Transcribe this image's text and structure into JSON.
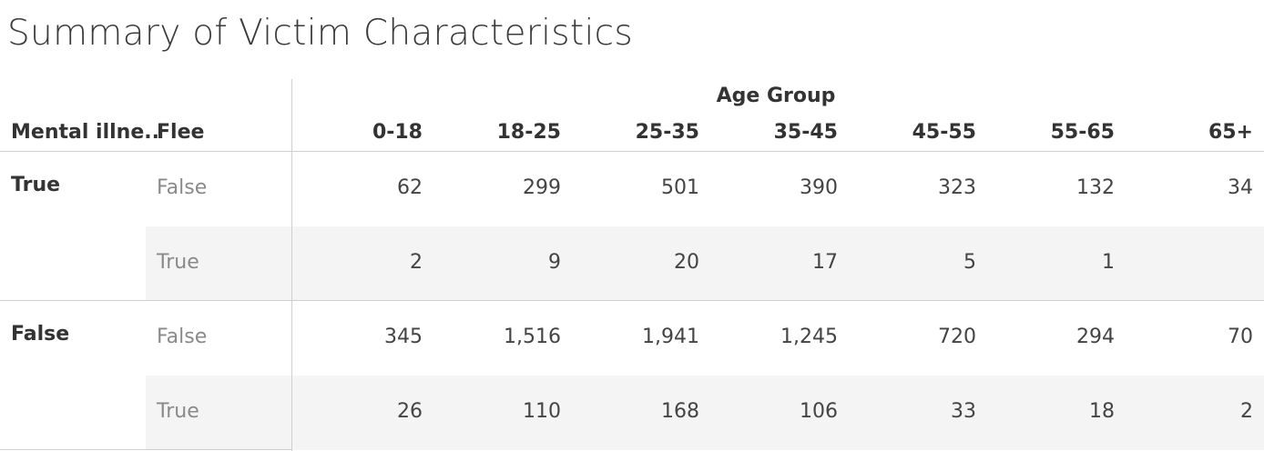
{
  "chart_data": {
    "type": "table",
    "title": "Summary of Victim Characteristics",
    "row_header_1": "Mental illne..",
    "row_header_2": "Flee",
    "column_group_label": "Age Group",
    "columns": [
      "0-18",
      "18-25",
      "25-35",
      "35-45",
      "45-55",
      "55-65",
      "65+"
    ],
    "groups": [
      {
        "label": "True",
        "rows": [
          {
            "flee": "False",
            "values": [
              "62",
              "299",
              "501",
              "390",
              "323",
              "132",
              "34"
            ]
          },
          {
            "flee": "True",
            "values": [
              "2",
              "9",
              "20",
              "17",
              "5",
              "1",
              ""
            ]
          }
        ]
      },
      {
        "label": "False",
        "rows": [
          {
            "flee": "False",
            "values": [
              "345",
              "1,516",
              "1,941",
              "1,245",
              "720",
              "294",
              "70"
            ]
          },
          {
            "flee": "True",
            "values": [
              "26",
              "110",
              "168",
              "106",
              "33",
              "18",
              "2"
            ]
          }
        ]
      }
    ]
  }
}
